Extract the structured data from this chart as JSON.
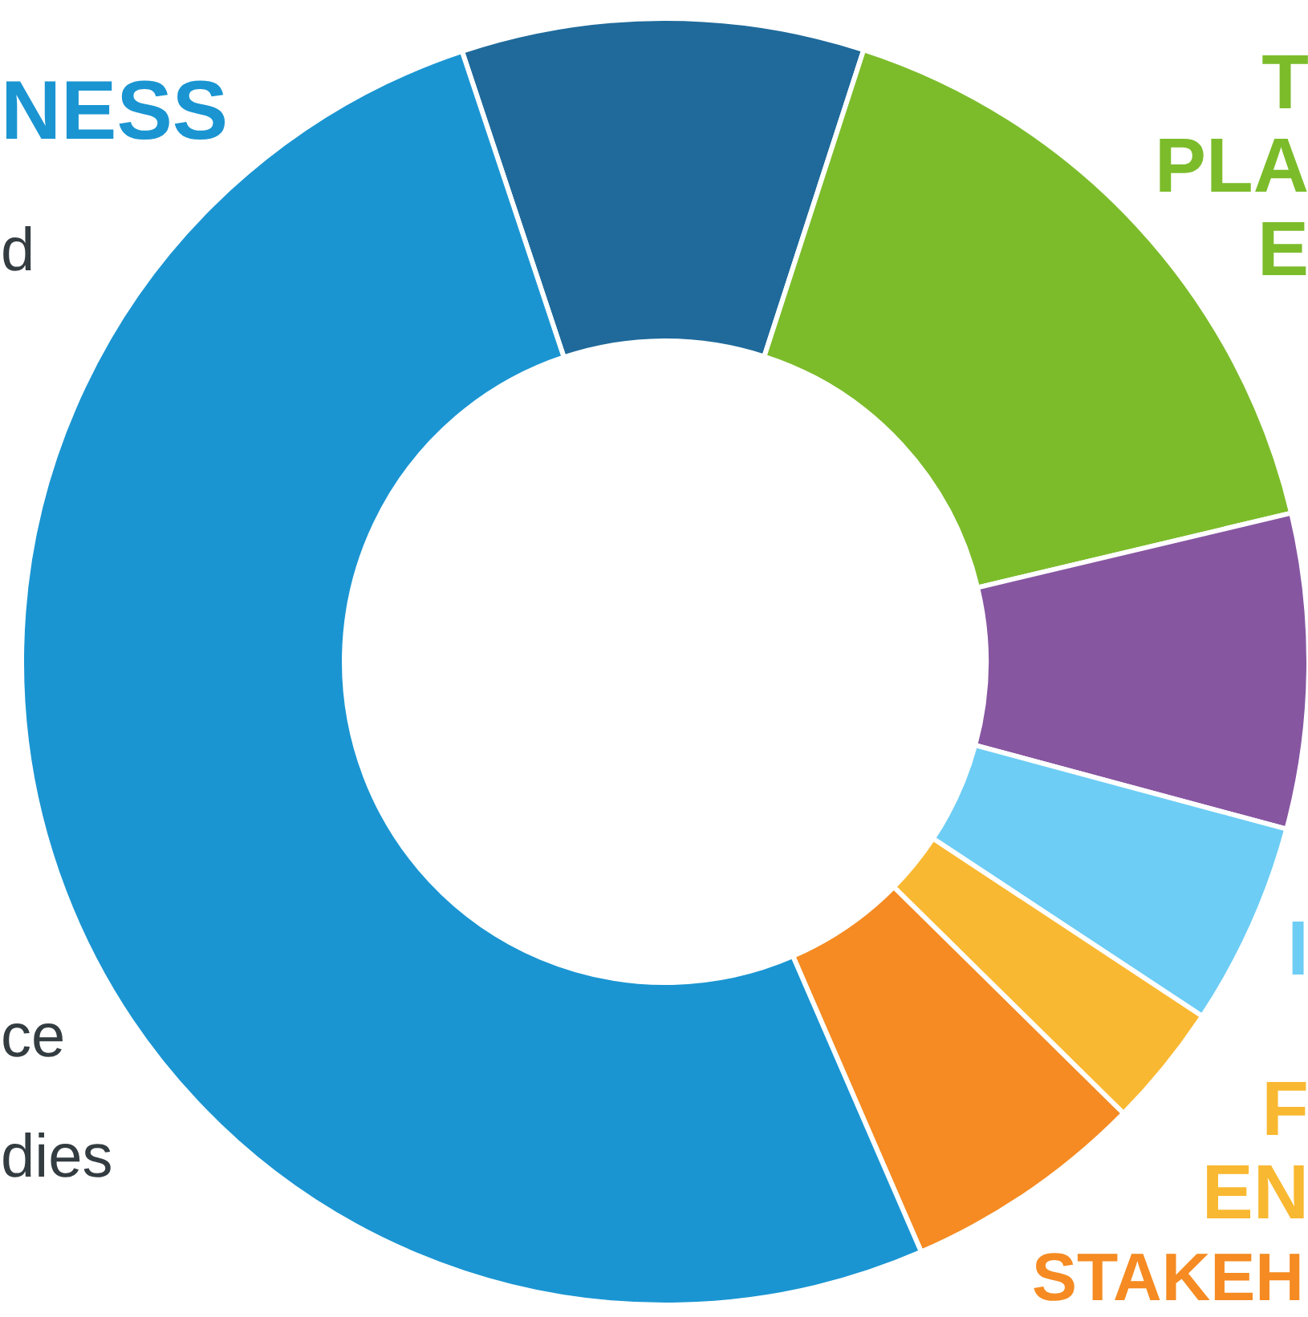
{
  "chart_data": {
    "type": "donut",
    "categories": [
      null,
      "T\nPLA\nE",
      null,
      "I",
      "F\nEN",
      "STAKEH",
      "NESS"
    ],
    "values": [
      10.1,
      16.3,
      7.9,
      5.1,
      3.1,
      6.1,
      51.4
    ],
    "colors": [
      "#1f6a9b",
      "#7cbc2b",
      "#8756a1",
      "#6dcdf5",
      "#f9b831",
      "#f58b22",
      "#1a95d2"
    ],
    "annotations": [
      "d",
      "ce",
      "dies"
    ]
  }
}
